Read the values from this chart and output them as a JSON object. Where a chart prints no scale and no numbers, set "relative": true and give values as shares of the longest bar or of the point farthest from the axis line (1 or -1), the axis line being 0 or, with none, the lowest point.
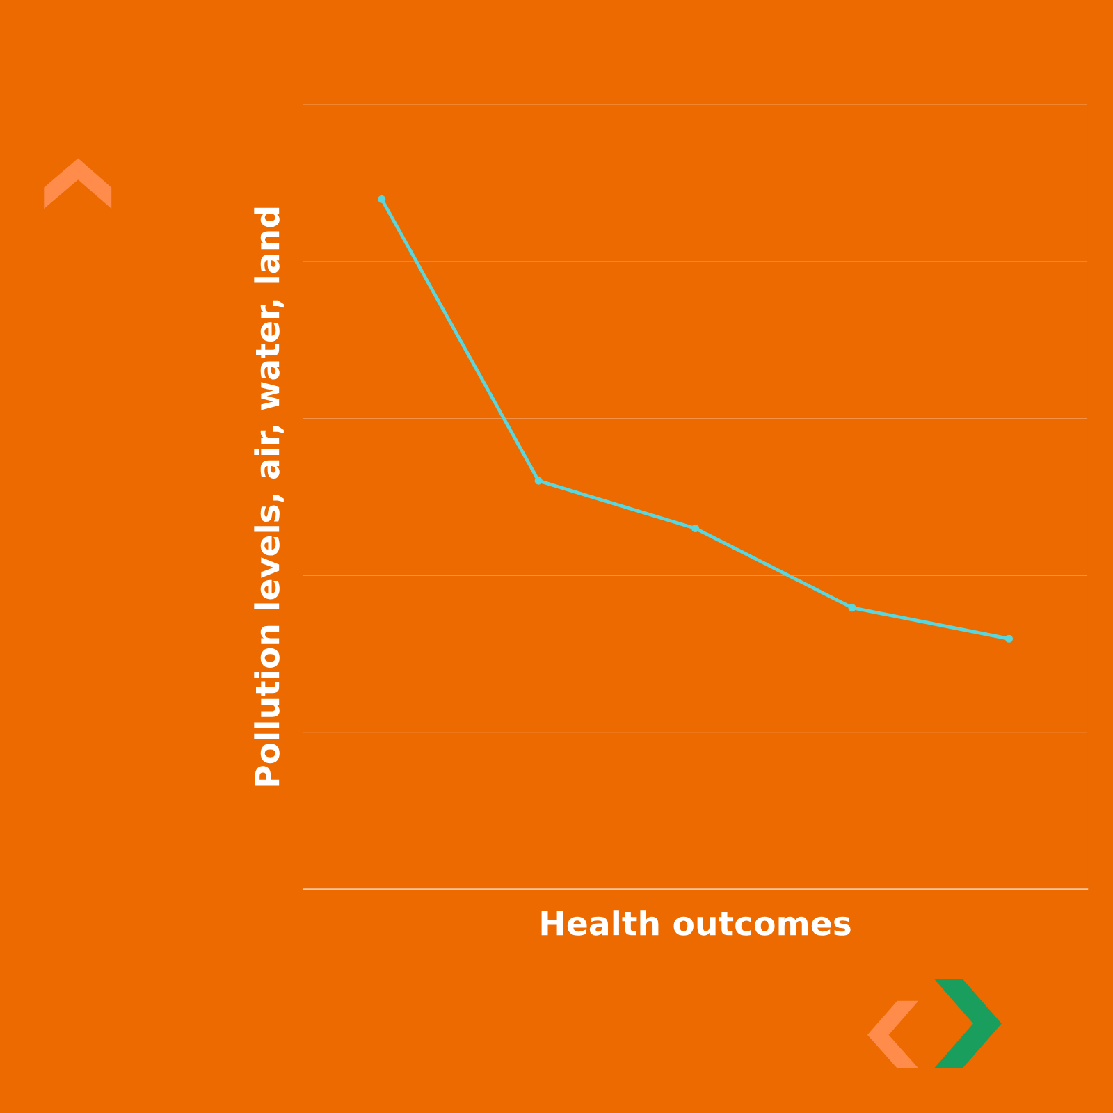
{
  "chart_data": {
    "type": "line",
    "relative": true,
    "xlabel": "Health outcomes",
    "ylabel": "Pollution levels, air, water, land",
    "categories": [
      null,
      null,
      null,
      null,
      null
    ],
    "series": [
      {
        "color": "#5ad6dc",
        "values": [
          1,
          0.592,
          0.523,
          0.408,
          0.363
        ]
      }
    ],
    "ref_lines": [
      {
        "axis": "y",
        "value": 0.2274,
        "color": "#f5a060"
      },
      {
        "axis": "y",
        "value": 0.4548,
        "color": "#f5a060"
      },
      {
        "axis": "y",
        "value": 0.6821,
        "color": "#f5a060"
      },
      {
        "axis": "y",
        "value": 0.9095,
        "color": "#f5a060"
      },
      {
        "axis": "y",
        "value": 1.137,
        "color": "#f5a060"
      }
    ],
    "marker": "circle",
    "line_style": "solid",
    "legend": false
  }
}
